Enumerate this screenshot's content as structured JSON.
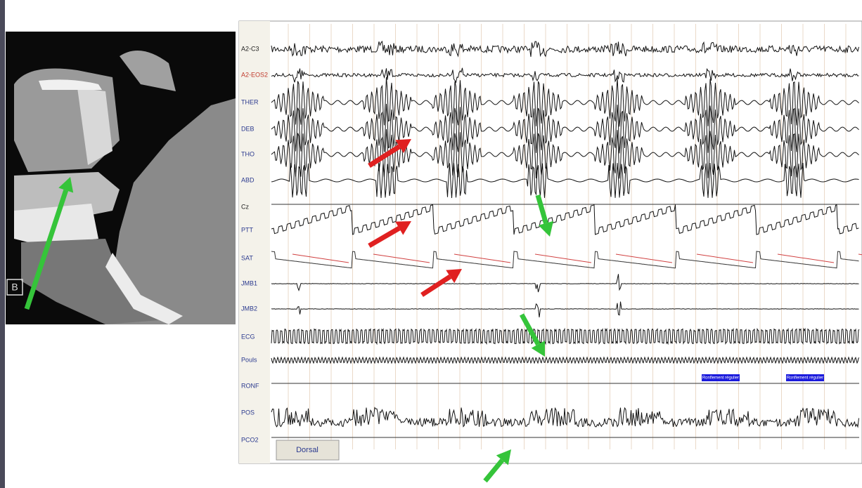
{
  "ct_marker": "B",
  "channels": [
    {
      "label": "A2-C3",
      "color": "#222222"
    },
    {
      "label": "A2-EOS2",
      "color": "#c0392b"
    },
    {
      "label": "THER",
      "color": "#2b3a8f"
    },
    {
      "label": "DEB",
      "color": "#2b3a8f"
    },
    {
      "label": "THO",
      "color": "#2b3a8f"
    },
    {
      "label": "ABD",
      "color": "#2b3a8f"
    },
    {
      "label": "Cz",
      "color": "#222222"
    },
    {
      "label": "PTT",
      "color": "#2b3a8f"
    },
    {
      "label": "SAT",
      "color": "#2b3a8f"
    },
    {
      "label": "JMB1",
      "color": "#2b3a8f"
    },
    {
      "label": "JMB2",
      "color": "#2b3a8f"
    },
    {
      "label": "ECG",
      "color": "#2b3a8f"
    },
    {
      "label": "Pouls",
      "color": "#2b3a8f"
    },
    {
      "label": "RONF",
      "color": "#2b3a8f"
    },
    {
      "label": "POS",
      "color": "#2b3a8f"
    },
    {
      "label": "PCO2",
      "color": "#2b3a8f"
    }
  ],
  "position_button": "Dorsal",
  "event_labels": [
    "Ronflement régulier",
    "Ronflement régulier"
  ]
}
